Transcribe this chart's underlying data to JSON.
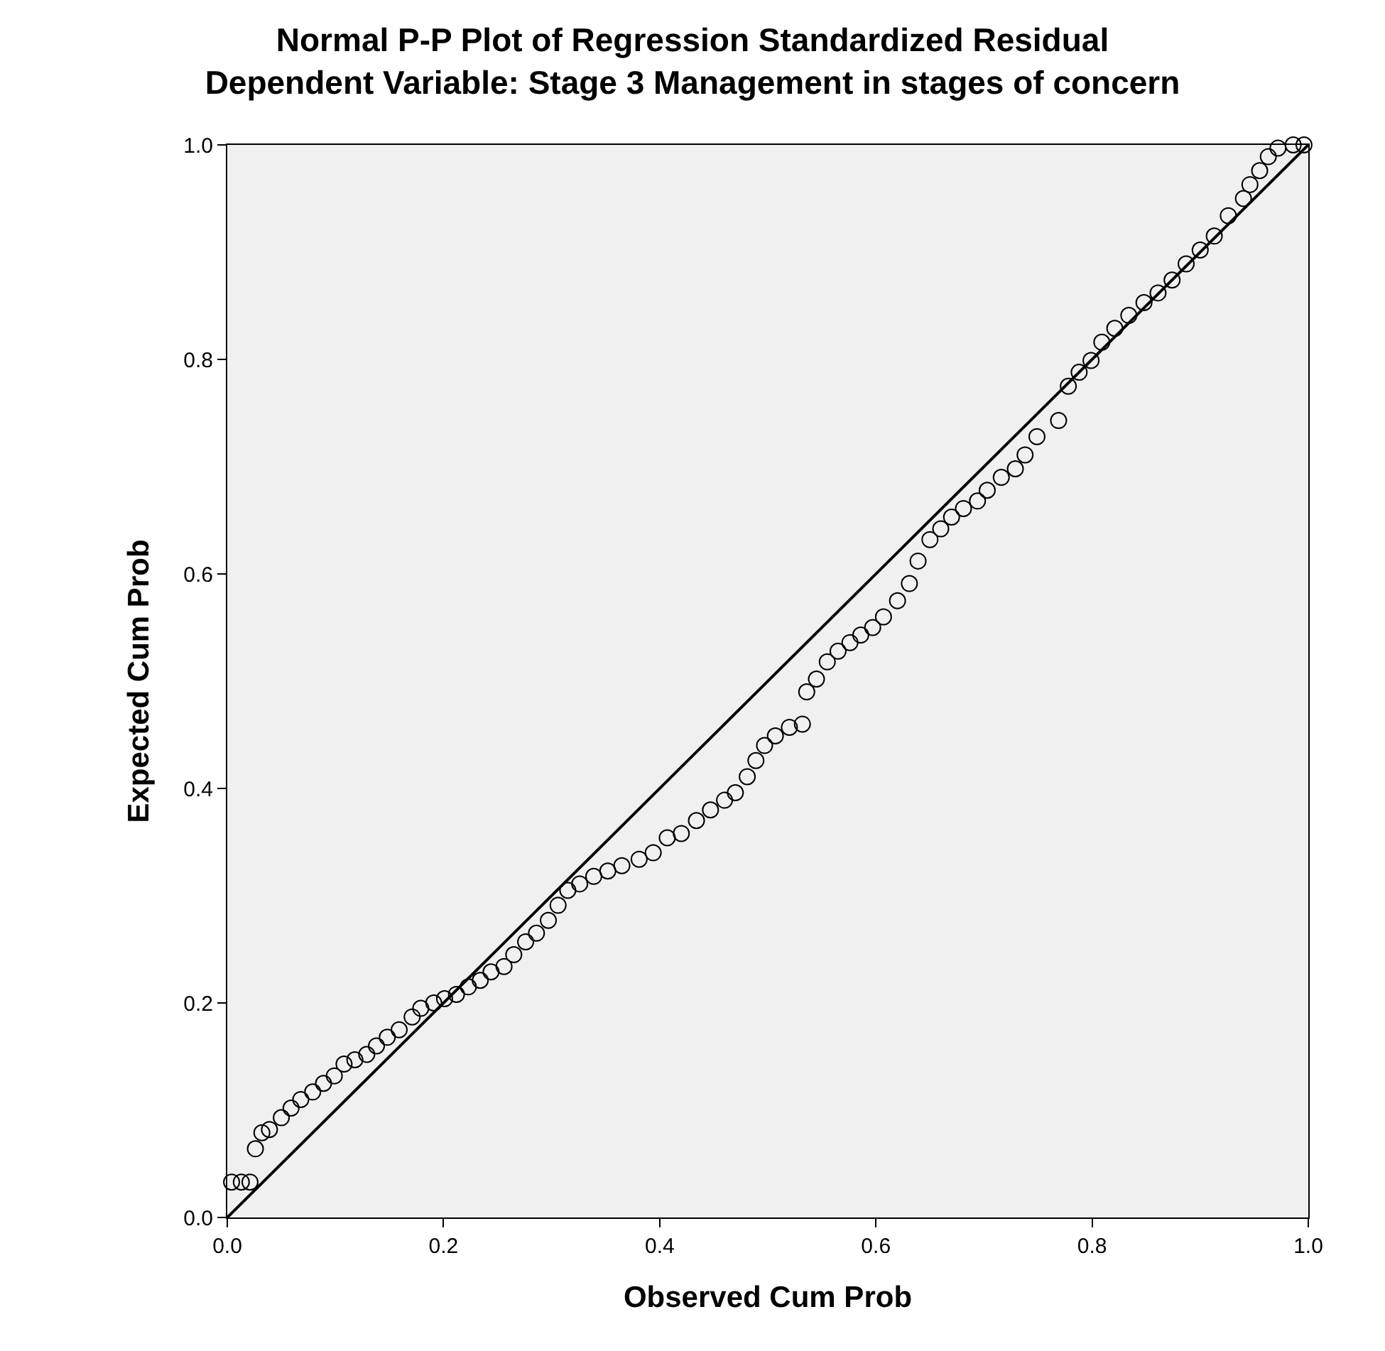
{
  "chart_data": {
    "type": "scatter",
    "title": "Normal P-P Plot of Regression Standardized Residual",
    "subtitle": "Dependent Variable: Stage 3 Management in stages of concern",
    "xlabel": "Observed Cum Prob",
    "ylabel": "Expected Cum Prob",
    "xlim": [
      0,
      1
    ],
    "ylim": [
      0,
      1
    ],
    "xticks": [
      {
        "value": 0,
        "label": "0.0"
      },
      {
        "value": 0.2,
        "label": "0.2"
      },
      {
        "value": 0.4,
        "label": "0.4"
      },
      {
        "value": 0.6,
        "label": "0.6"
      },
      {
        "value": 0.8,
        "label": "0.8"
      },
      {
        "value": 1,
        "label": "1.0"
      }
    ],
    "yticks": [
      {
        "value": 0,
        "label": "0.0"
      },
      {
        "value": 0.2,
        "label": "0.2"
      },
      {
        "value": 0.4,
        "label": "0.4"
      },
      {
        "value": 0.6,
        "label": "0.6"
      },
      {
        "value": 0.8,
        "label": "0.8"
      },
      {
        "value": 1,
        "label": "1.0"
      }
    ],
    "grid": false,
    "legend": false,
    "marker": "circle",
    "series": [
      {
        "color": "#000000",
        "x": [
          0.004,
          0.013,
          0.021,
          0.026,
          0.032,
          0.039,
          0.05,
          0.059,
          0.068,
          0.079,
          0.089,
          0.099,
          0.108,
          0.118,
          0.129,
          0.138,
          0.148,
          0.159,
          0.171,
          0.179,
          0.191,
          0.201,
          0.212,
          0.223,
          0.234,
          0.244,
          0.256,
          0.265,
          0.276,
          0.286,
          0.297,
          0.306,
          0.315,
          0.326,
          0.339,
          0.352,
          0.365,
          0.381,
          0.394,
          0.407,
          0.42,
          0.434,
          0.447,
          0.46,
          0.47,
          0.481,
          0.489,
          0.497,
          0.507,
          0.52,
          0.532,
          0.536,
          0.545,
          0.555,
          0.565,
          0.576,
          0.586,
          0.597,
          0.607,
          0.62,
          0.631,
          0.639,
          0.65,
          0.66,
          0.67,
          0.681,
          0.694,
          0.703,
          0.716,
          0.729,
          0.738,
          0.749,
          0.769,
          0.778,
          0.788,
          0.799,
          0.809,
          0.821,
          0.834,
          0.848,
          0.861,
          0.874,
          0.887,
          0.9,
          0.913,
          0.926,
          0.94,
          0.946,
          0.955,
          0.963,
          0.972,
          0.986,
          0.996
        ],
        "values": [
          0.033,
          0.033,
          0.033,
          0.064,
          0.079,
          0.082,
          0.093,
          0.102,
          0.11,
          0.117,
          0.125,
          0.132,
          0.143,
          0.147,
          0.152,
          0.16,
          0.168,
          0.175,
          0.187,
          0.195,
          0.2,
          0.204,
          0.208,
          0.215,
          0.221,
          0.229,
          0.234,
          0.245,
          0.257,
          0.265,
          0.277,
          0.291,
          0.305,
          0.311,
          0.318,
          0.323,
          0.328,
          0.334,
          0.34,
          0.354,
          0.358,
          0.37,
          0.38,
          0.389,
          0.396,
          0.411,
          0.426,
          0.44,
          0.449,
          0.457,
          0.46,
          0.49,
          0.502,
          0.518,
          0.528,
          0.536,
          0.543,
          0.55,
          0.56,
          0.575,
          0.591,
          0.612,
          0.632,
          0.642,
          0.653,
          0.661,
          0.668,
          0.678,
          0.69,
          0.698,
          0.711,
          0.728,
          0.743,
          0.775,
          0.788,
          0.799,
          0.816,
          0.829,
          0.841,
          0.853,
          0.862,
          0.874,
          0.889,
          0.902,
          0.915,
          0.934,
          0.95,
          0.963,
          0.976,
          0.989,
          0.997,
          1.0,
          1.0
        ]
      },
      {
        "type": "line",
        "color": "#000000",
        "x": [
          0,
          1
        ],
        "values": [
          0,
          1
        ],
        "line_style": "solid",
        "marker": "none"
      }
    ]
  }
}
